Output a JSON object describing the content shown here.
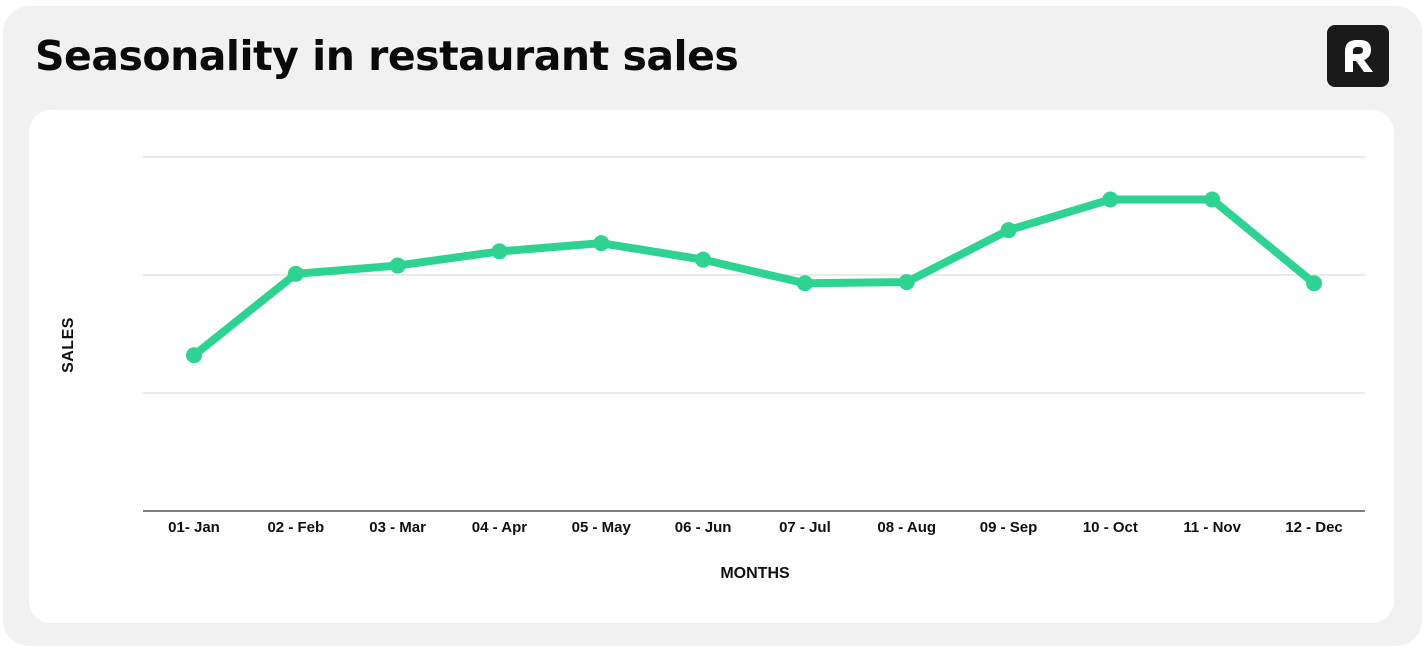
{
  "header": {
    "title": "Seasonality in restaurant sales",
    "logo_letter": "R"
  },
  "colors": {
    "line": "#2ed392",
    "background_outer": "#f1f1f1",
    "card": "#ffffff",
    "grid": "#dedede",
    "axis": "#333333",
    "logo_bg": "#1a1a1a"
  },
  "chart_data": {
    "type": "line",
    "title": "Seasonality in restaurant sales",
    "xlabel": "MONTHS",
    "ylabel": "SALES",
    "categories": [
      "01- Jan",
      "02 - Feb",
      "03 - Mar",
      "04 - Apr",
      "05 - May",
      "06 - Jun",
      "07 - Jul",
      "08 - Aug",
      "09 - Sep",
      "10 - Oct",
      "11 - Nov",
      "12 - Dec"
    ],
    "series": [
      {
        "name": "Sales",
        "values": [
          1.32,
          2.01,
          2.08,
          2.2,
          2.27,
          2.13,
          1.93,
          1.94,
          2.38,
          2.64,
          2.64,
          1.93
        ]
      }
    ],
    "ylim": [
      0,
      3
    ],
    "y_units": "relative (no tick labels shown; gridlines at 1, 2, 3)",
    "grid": true,
    "legend": "none"
  }
}
